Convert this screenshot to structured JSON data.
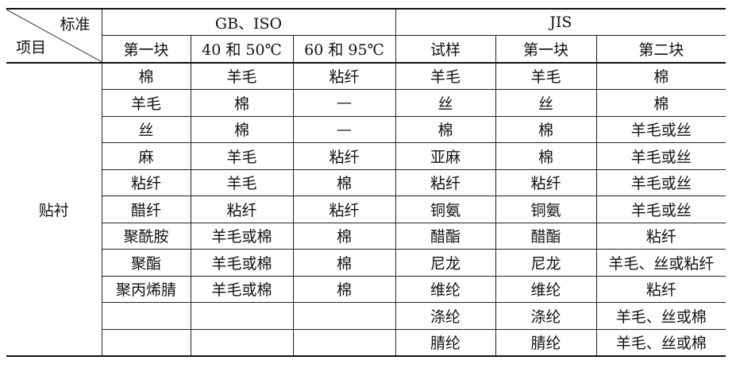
{
  "corner": {
    "top": "标准",
    "bottom": "项目"
  },
  "groups": [
    {
      "label": "GB、ISO"
    },
    {
      "label": "JIS"
    }
  ],
  "columns": [
    "第一块",
    "40 和 50℃",
    "60 和 95℃",
    "试样",
    "第一块",
    "第二块"
  ],
  "row_label": "贴衬",
  "rows": [
    [
      "棉",
      "羊毛",
      "粘纤",
      "羊毛",
      "羊毛",
      "棉"
    ],
    [
      "羊毛",
      "棉",
      "—",
      "丝",
      "丝",
      "棉"
    ],
    [
      "丝",
      "棉",
      "—",
      "棉",
      "棉",
      "羊毛或丝"
    ],
    [
      "麻",
      "羊毛",
      "粘纤",
      "亚麻",
      "棉",
      "羊毛或丝"
    ],
    [
      "粘纤",
      "羊毛",
      "棉",
      "粘纤",
      "粘纤",
      "羊毛或丝"
    ],
    [
      "醋纤",
      "粘纤",
      "粘纤",
      "铜氨",
      "铜氨",
      "羊毛或丝"
    ],
    [
      "聚酰胺",
      "羊毛或棉",
      "棉",
      "醋酯",
      "醋酯",
      "粘纤"
    ],
    [
      "聚酯",
      "羊毛或棉",
      "棉",
      "尼龙",
      "尼龙",
      "羊毛、丝或粘纤"
    ],
    [
      "聚丙烯腈",
      "羊毛或棉",
      "棉",
      "维纶",
      "维纶",
      "粘纤"
    ],
    [
      "",
      "",
      "",
      "涤纶",
      "涤纶",
      "羊毛、丝或棉"
    ],
    [
      "",
      "",
      "",
      "腈纶",
      "腈纶",
      "羊毛、丝或棉"
    ]
  ]
}
